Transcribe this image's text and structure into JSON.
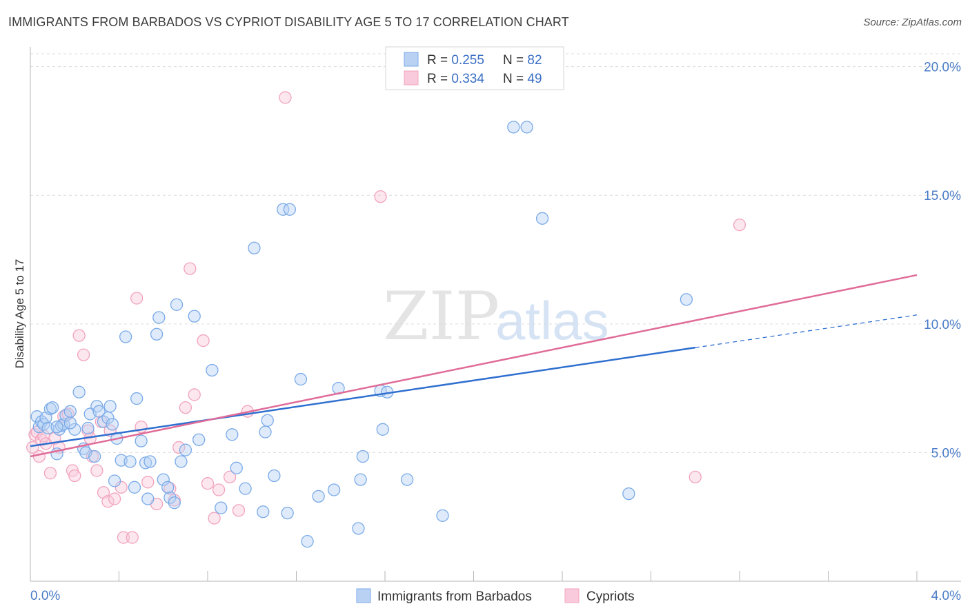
{
  "chart_data": {
    "type": "scatter",
    "title": "IMMIGRANTS FROM BARBADOS VS CYPRIOT DISABILITY AGE 5 TO 17 CORRELATION CHART",
    "source": "Source: ZipAtlas.com",
    "watermark": "ZIPatlas",
    "ylabel": "Disability Age 5 to 17",
    "xlabel": "",
    "xlim": [
      0,
      4.0
    ],
    "ylim": [
      0,
      20.5
    ],
    "x_tick_labels": [
      "0.0%",
      "4.0%"
    ],
    "y_ticks": [
      5,
      10,
      15,
      20
    ],
    "y_tick_labels": [
      "5.0%",
      "10.0%",
      "15.0%",
      "20.0%"
    ],
    "grid": true,
    "legend": {
      "placement": "top-center",
      "rows": [
        {
          "r_label": "R = ",
          "r_value": "0.255",
          "n_label": "N = ",
          "n_value": "82"
        },
        {
          "r_label": "R = ",
          "r_value": "0.334",
          "n_label": "N = ",
          "n_value": "49"
        }
      ]
    },
    "series": [
      {
        "name": "Immigrants from Barbados",
        "color": "#7aaae8",
        "fill": "#b9d2f3",
        "line_color": "#2f6fcf",
        "trend": {
          "x0": 0.0,
          "y0": 5.25,
          "x1": 3.0,
          "y1": 9.08,
          "x_dash_end": 4.0,
          "y_dash_end": 10.35
        },
        "points": [
          [
            0.03,
            6.4
          ],
          [
            0.04,
            6.0
          ],
          [
            0.05,
            6.2
          ],
          [
            0.06,
            6.1
          ],
          [
            0.07,
            6.35
          ],
          [
            0.08,
            5.95
          ],
          [
            0.09,
            6.7
          ],
          [
            0.1,
            6.75
          ],
          [
            0.12,
            4.95
          ],
          [
            0.13,
            5.9
          ],
          [
            0.14,
            6.05
          ],
          [
            0.15,
            6.1
          ],
          [
            0.16,
            6.45
          ],
          [
            0.18,
            6.6
          ],
          [
            0.2,
            5.9
          ],
          [
            0.22,
            7.35
          ],
          [
            0.24,
            5.15
          ],
          [
            0.25,
            5.0
          ],
          [
            0.27,
            6.5
          ],
          [
            0.29,
            4.85
          ],
          [
            0.3,
            6.8
          ],
          [
            0.31,
            6.6
          ],
          [
            0.33,
            6.2
          ],
          [
            0.35,
            6.35
          ],
          [
            0.36,
            6.8
          ],
          [
            0.37,
            6.1
          ],
          [
            0.39,
            5.55
          ],
          [
            0.41,
            4.7
          ],
          [
            0.43,
            9.5
          ],
          [
            0.45,
            4.65
          ],
          [
            0.48,
            7.1
          ],
          [
            0.5,
            5.45
          ],
          [
            0.52,
            4.6
          ],
          [
            0.54,
            4.65
          ],
          [
            0.57,
            9.6
          ],
          [
            0.58,
            10.25
          ],
          [
            0.6,
            3.95
          ],
          [
            0.63,
            3.25
          ],
          [
            0.65,
            3.05
          ],
          [
            0.66,
            10.75
          ],
          [
            0.68,
            4.65
          ],
          [
            0.7,
            5.1
          ],
          [
            0.74,
            10.3
          ],
          [
            0.76,
            5.5
          ],
          [
            0.82,
            8.2
          ],
          [
            0.86,
            2.85
          ],
          [
            0.91,
            5.7
          ],
          [
            0.93,
            4.4
          ],
          [
            0.97,
            3.6
          ],
          [
            1.01,
            12.95
          ],
          [
            1.05,
            2.7
          ],
          [
            1.06,
            5.8
          ],
          [
            1.07,
            6.25
          ],
          [
            1.1,
            4.1
          ],
          [
            1.14,
            14.45
          ],
          [
            1.16,
            2.65
          ],
          [
            1.17,
            14.45
          ],
          [
            1.22,
            7.85
          ],
          [
            1.25,
            1.55
          ],
          [
            1.3,
            3.3
          ],
          [
            1.37,
            3.55
          ],
          [
            1.39,
            7.5
          ],
          [
            1.48,
            2.05
          ],
          [
            1.49,
            3.95
          ],
          [
            1.5,
            4.85
          ],
          [
            1.58,
            7.4
          ],
          [
            1.59,
            5.9
          ],
          [
            1.61,
            7.35
          ],
          [
            1.7,
            3.95
          ],
          [
            1.86,
            2.55
          ],
          [
            2.18,
            17.65
          ],
          [
            2.24,
            17.65
          ],
          [
            2.31,
            14.1
          ],
          [
            2.7,
            3.4
          ],
          [
            2.96,
            10.95
          ],
          [
            0.62,
            3.65
          ],
          [
            0.53,
            3.2
          ],
          [
            0.47,
            3.65
          ],
          [
            0.38,
            3.9
          ],
          [
            0.26,
            5.95
          ],
          [
            0.18,
            6.15
          ],
          [
            0.12,
            6.0
          ]
        ]
      },
      {
        "name": "Cypriots",
        "color": "#f2a3bd",
        "fill": "#f9cadb",
        "line_color": "#e06c98",
        "trend": {
          "x0": 0.0,
          "y0": 4.85,
          "x1": 4.0,
          "y1": 11.9
        },
        "points": [
          [
            0.01,
            5.2
          ],
          [
            0.02,
            5.7
          ],
          [
            0.03,
            5.8
          ],
          [
            0.04,
            4.85
          ],
          [
            0.05,
            5.5
          ],
          [
            0.06,
            5.65
          ],
          [
            0.07,
            5.35
          ],
          [
            0.09,
            4.2
          ],
          [
            0.11,
            5.55
          ],
          [
            0.13,
            5.2
          ],
          [
            0.15,
            6.4
          ],
          [
            0.17,
            6.5
          ],
          [
            0.19,
            4.3
          ],
          [
            0.2,
            4.1
          ],
          [
            0.22,
            9.55
          ],
          [
            0.24,
            8.8
          ],
          [
            0.26,
            5.85
          ],
          [
            0.27,
            5.55
          ],
          [
            0.28,
            4.85
          ],
          [
            0.3,
            4.3
          ],
          [
            0.32,
            6.2
          ],
          [
            0.33,
            3.45
          ],
          [
            0.35,
            3.1
          ],
          [
            0.36,
            5.85
          ],
          [
            0.38,
            3.2
          ],
          [
            0.41,
            3.65
          ],
          [
            0.42,
            1.7
          ],
          [
            0.46,
            1.7
          ],
          [
            0.48,
            11.0
          ],
          [
            0.5,
            6.0
          ],
          [
            0.53,
            3.85
          ],
          [
            0.57,
            3.0
          ],
          [
            0.63,
            3.6
          ],
          [
            0.65,
            3.15
          ],
          [
            0.67,
            5.2
          ],
          [
            0.7,
            6.75
          ],
          [
            0.72,
            12.15
          ],
          [
            0.74,
            7.25
          ],
          [
            0.78,
            9.35
          ],
          [
            0.8,
            3.8
          ],
          [
            0.83,
            2.45
          ],
          [
            0.85,
            3.55
          ],
          [
            0.9,
            4.05
          ],
          [
            0.94,
            2.75
          ],
          [
            0.98,
            6.6
          ],
          [
            1.15,
            18.8
          ],
          [
            1.58,
            14.95
          ],
          [
            3.0,
            4.05
          ],
          [
            3.2,
            13.85
          ]
        ]
      }
    ]
  },
  "bottom_legend": {
    "items": [
      {
        "label": "Immigrants from Barbados"
      },
      {
        "label": "Cypriots"
      }
    ]
  }
}
